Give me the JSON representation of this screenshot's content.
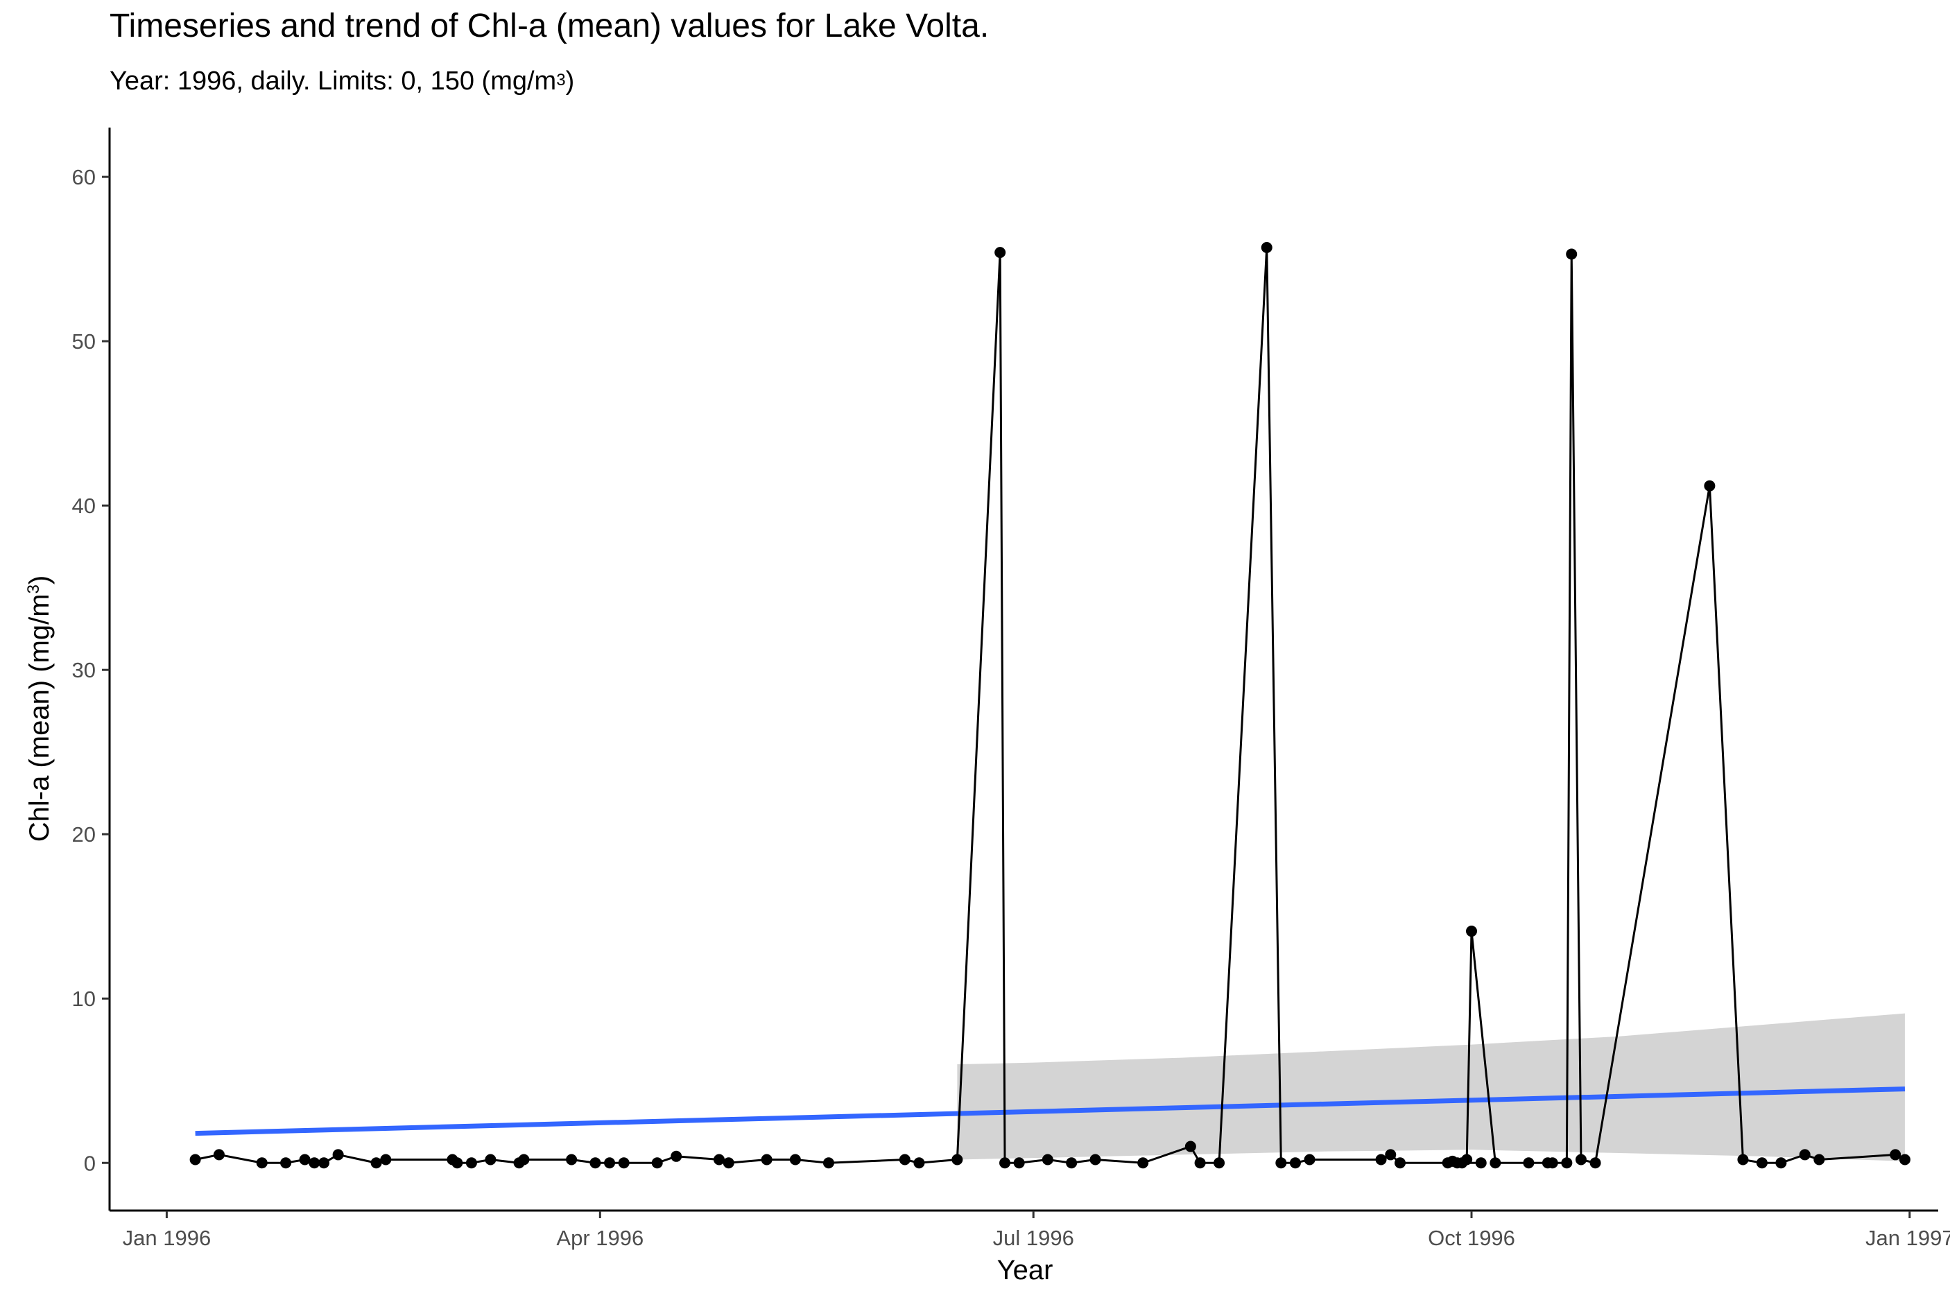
{
  "title": "Timeseries and trend of Chl-a (mean) values for Lake Volta.",
  "subtitle": {
    "text": "Year: 1996, daily. Limits: 0, 150 (mg/m",
    "superscript": "3",
    "suffix": ")"
  },
  "chart_data": {
    "type": "line",
    "xlabel": "Year",
    "ylabel": {
      "text": "Chl-a (mean) (mg/m",
      "superscript": "3",
      "suffix": ")"
    },
    "xlim": [
      "1995-12-20",
      "1997-01-07"
    ],
    "ylim": [
      -2.9,
      63
    ],
    "x_ticks": [
      {
        "date": "1996-01-01",
        "label": "Jan 1996"
      },
      {
        "date": "1996-04-01",
        "label": "Apr 1996"
      },
      {
        "date": "1996-07-01",
        "label": "Jul 1996"
      },
      {
        "date": "1996-10-01",
        "label": "Oct 1996"
      },
      {
        "date": "1997-01-01",
        "label": "Jan 1997"
      }
    ],
    "y_ticks": [
      0,
      10,
      20,
      30,
      40,
      50,
      60
    ],
    "grid": false,
    "colors": {
      "series": "#000000",
      "trend": "#3366FF",
      "ribbon": "#d4d4d4"
    },
    "series": [
      {
        "x": [
          "1996-01-07",
          "1996-01-12",
          "1996-01-21",
          "1996-01-26",
          "1996-01-30",
          "1996-02-01",
          "1996-02-03",
          "1996-02-06",
          "1996-02-14",
          "1996-02-16",
          "1996-03-01",
          "1996-03-02",
          "1996-03-05",
          "1996-03-09",
          "1996-03-15",
          "1996-03-16",
          "1996-03-26",
          "1996-03-31",
          "1996-04-03",
          "1996-04-06",
          "1996-04-13",
          "1996-04-17",
          "1996-04-26",
          "1996-04-28",
          "1996-05-06",
          "1996-05-12",
          "1996-05-19",
          "1996-06-04",
          "1996-06-07",
          "1996-06-15",
          "1996-06-24",
          "1996-06-25",
          "1996-06-28",
          "1996-07-04",
          "1996-07-09",
          "1996-07-14",
          "1996-07-24",
          "1996-08-03",
          "1996-08-05",
          "1996-08-09",
          "1996-08-19",
          "1996-08-22",
          "1996-08-25",
          "1996-08-28",
          "1996-09-12",
          "1996-09-14",
          "1996-09-16",
          "1996-09-28",
          "1996-09-29",
          "1996-10-03",
          "1996-09-26",
          "1996-09-27",
          "1996-09-30",
          "1996-10-01",
          "1996-10-06",
          "1996-10-13",
          "1996-10-17",
          "1996-10-18",
          "1996-10-21",
          "1996-10-22",
          "1996-10-24",
          "1996-10-27",
          "1996-11-20",
          "1996-11-27",
          "1996-12-01",
          "1996-12-05",
          "1996-12-10",
          "1996-12-13",
          "1996-12-29",
          "1996-12-31"
        ],
        "y": [
          0.2,
          0.5,
          0.0,
          0.0,
          0.2,
          0.0,
          0.0,
          0.5,
          0.0,
          0.2,
          0.2,
          0.0,
          0.0,
          0.2,
          0.0,
          0.2,
          0.2,
          0.0,
          0.0,
          0.0,
          0.0,
          0.4,
          0.2,
          0.0,
          0.2,
          0.2,
          0.0,
          0.2,
          0.0,
          0.2,
          55.4,
          0.0,
          0.0,
          0.2,
          0.0,
          0.2,
          0.0,
          1.0,
          0.0,
          0.0,
          55.7,
          0.0,
          0.0,
          0.2,
          0.2,
          0.5,
          0.0,
          0.0,
          0.0,
          0.0,
          0.0,
          0.1,
          0.2,
          14.1,
          0.0,
          0.0,
          0.0,
          0.0,
          0.0,
          55.3,
          0.2,
          0.0,
          41.2,
          0.2,
          0.0,
          0.0,
          0.5,
          0.2,
          0.5,
          0.2
        ]
      }
    ],
    "trend": {
      "x": [
        "1996-01-07",
        "1996-12-31"
      ],
      "y": [
        1.8,
        4.5
      ]
    },
    "confidence_ribbon": {
      "x": [
        "1996-06-15",
        "1996-07-01",
        "1996-08-01",
        "1996-09-01",
        "1996-10-01",
        "1996-11-01",
        "1996-12-01",
        "1996-12-31"
      ],
      "lower": [
        0.2,
        0.3,
        0.5,
        0.7,
        0.8,
        0.6,
        0.4,
        0.1
      ],
      "upper": [
        6.0,
        6.1,
        6.4,
        6.8,
        7.2,
        7.7,
        8.4,
        9.1
      ]
    }
  }
}
